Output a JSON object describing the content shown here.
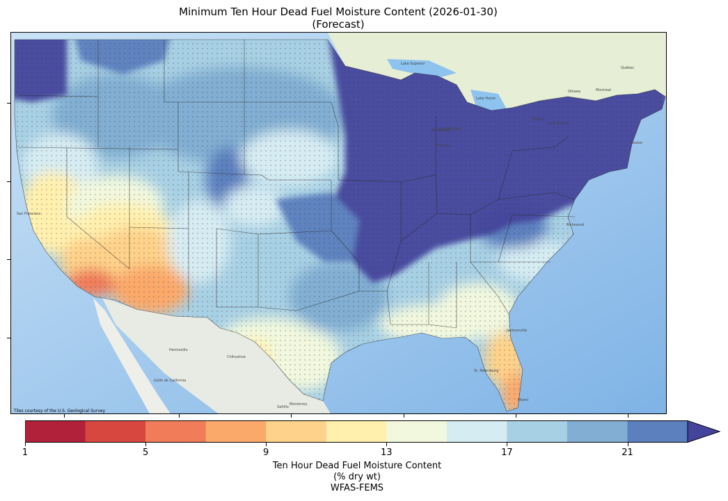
{
  "title_line1": "Minimum Ten Hour Dead Fuel Moisture Content (2026-01-30)",
  "title_line2": "(Forecast)",
  "attribution": "Tiles courtesy of the U.S. Geological Survey",
  "basemap_places": {
    "san_francisco": "San Francisco",
    "hermosillo": "Hermosillo",
    "chihuahua": "Chihuahua",
    "gulf_of_california": "Golfo de California",
    "monterrey": "Monterrey",
    "saltillo": "Saltillo",
    "jacksonville": "Jacksonville",
    "richmond": "Richmond",
    "boston": "Boston",
    "ottawa": "Ottawa",
    "montreal": "Montreal",
    "toronto": "Toronto",
    "quebec": "Québec",
    "lake_superior": "Lake Superior",
    "lake_michigan": "Lake Michigan",
    "lake_huron": "Lake Huron",
    "lake_ontario": "Lake Ontario",
    "milwaukee": "Milwaukee",
    "chicago": "Chicago",
    "st_petersburg": "St. Petersburg",
    "miami": "Miami"
  },
  "colorbar": {
    "colors": [
      "#b2213a",
      "#d7473f",
      "#f07c5a",
      "#fba96a",
      "#fed28a",
      "#fff0ae",
      "#f1f8de",
      "#d6ecf3",
      "#a8d0e4",
      "#81aed2",
      "#5c7fbe",
      "#44449c"
    ],
    "tick_values": [
      "1",
      "5",
      "9",
      "13",
      "17",
      "21"
    ],
    "label_line1": "Ten Hour Dead Fuel Moisture Content",
    "label_line2": "(% dry wt)",
    "label_line3": "WFAS-FEMS",
    "extend": "max"
  }
}
